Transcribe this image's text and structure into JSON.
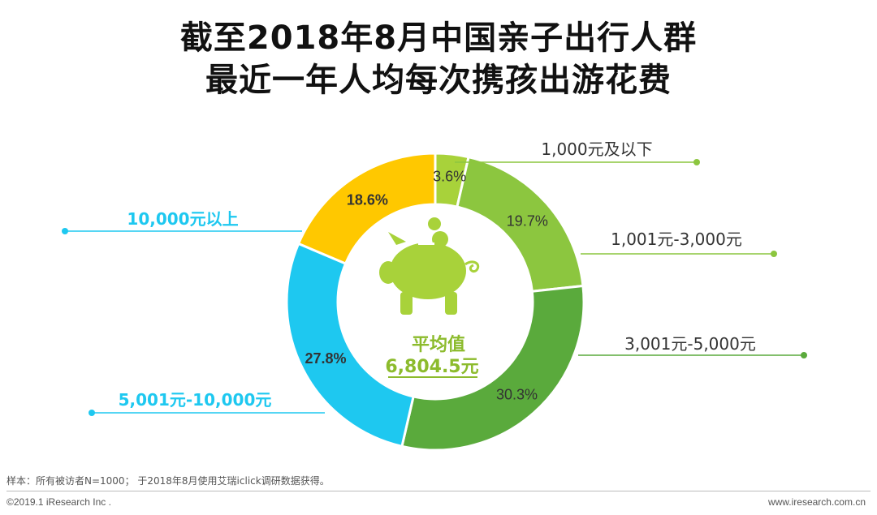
{
  "header": {
    "title_line1": "截至2018年8月中国亲子出行人群",
    "title_line2": "最近一年人均每次携孩出游花费"
  },
  "chart_data": {
    "type": "pie",
    "variant": "donut",
    "title": "截至2018年8月中国亲子出行人群最近一年人均每次携孩出游花费",
    "categories": [
      "1,000元及以下",
      "1,001元-3,000元",
      "3,001元-5,000元",
      "5,001元-10,000元",
      "10,000元以上"
    ],
    "values": [
      3.6,
      19.7,
      30.3,
      27.8,
      18.6
    ],
    "value_labels": [
      "3.6%",
      "19.7%",
      "30.3%",
      "27.8%",
      "18.6%"
    ],
    "colors": [
      "#a8d23a",
      "#8cc63f",
      "#5aaa3c",
      "#1ec8f0",
      "#ffc800"
    ],
    "center_label": "平均值",
    "center_value": "6,804.5元"
  },
  "colors": {
    "center_text": "#8cbb2c",
    "piggy": "#a8d23a"
  },
  "footer": {
    "note": "样本：所有被访者N=1000； 于2018年8月使用艾瑞iclick调研数据获得。",
    "copyright": "©2019.1 iResearch Inc .",
    "website": "www.iresearch.com.cn"
  }
}
